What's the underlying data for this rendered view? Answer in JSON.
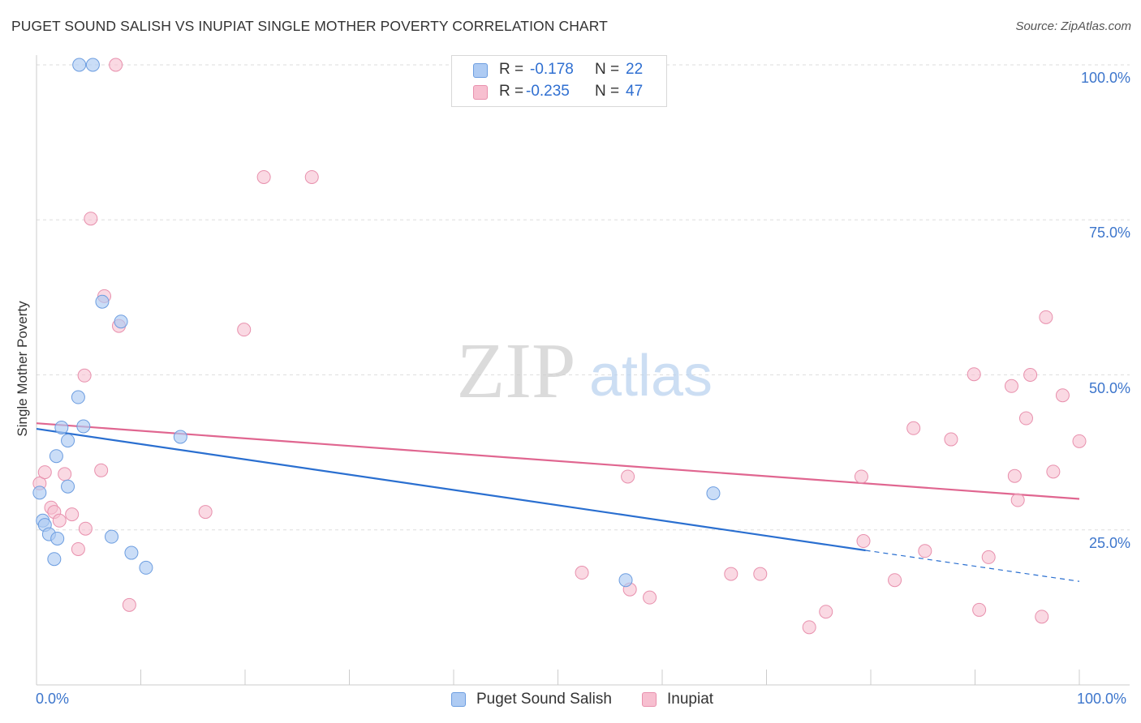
{
  "title": "PUGET SOUND SALISH VS INUPIAT SINGLE MOTHER POVERTY CORRELATION CHART",
  "source": "Source: ZipAtlas.com",
  "watermark": {
    "zip": "ZIP",
    "atlas": "atlas"
  },
  "legend": {
    "rows": [
      {
        "r_label": "R =",
        "r_value": "-0.178",
        "n_label": "N =",
        "n_value": "22"
      },
      {
        "r_label": "R =",
        "r_value": "-0.235",
        "n_label": "N =",
        "n_value": "47"
      }
    ]
  },
  "bottom_legend": {
    "series1": "Puget Sound Salish",
    "series2": "Inupiat"
  },
  "colors": {
    "series1_fill": "#aecbf3",
    "series1_stroke": "#6c9de0",
    "series1_line": "#2a6fd0",
    "series2_fill": "#f7bfd0",
    "series2_stroke": "#e890ad",
    "series2_line": "#e06690",
    "tick_text": "#3d76cc",
    "grid": "#dedede"
  },
  "chart_data": {
    "type": "scatter",
    "title": "PUGET SOUND SALISH VS INUPIAT SINGLE MOTHER POVERTY CORRELATION CHART",
    "xlabel": "",
    "ylabel": "Single Mother Poverty",
    "xlim": [
      0,
      100
    ],
    "ylim": [
      0,
      100
    ],
    "x_tick_labels": [
      "0.0%",
      "100.0%"
    ],
    "y_tick_labels": [
      "25.0%",
      "50.0%",
      "75.0%",
      "100.0%"
    ],
    "y_ticks": [
      25,
      50,
      75,
      100
    ],
    "grid": true,
    "legend_position": "top-center",
    "series": [
      {
        "name": "Puget Sound Salish",
        "r": -0.178,
        "n": 22,
        "points": [
          [
            0.3,
            31.0
          ],
          [
            0.6,
            26.5
          ],
          [
            0.8,
            25.8
          ],
          [
            1.2,
            24.3
          ],
          [
            1.7,
            20.3
          ],
          [
            2.0,
            23.6
          ],
          [
            1.9,
            36.9
          ],
          [
            2.4,
            41.5
          ],
          [
            3.0,
            39.4
          ],
          [
            3.0,
            32.0
          ],
          [
            4.0,
            46.4
          ],
          [
            4.5,
            41.7
          ],
          [
            4.1,
            100.0
          ],
          [
            5.4,
            100.0
          ],
          [
            6.3,
            61.8
          ],
          [
            8.1,
            58.6
          ],
          [
            7.2,
            23.9
          ],
          [
            9.1,
            21.3
          ],
          [
            10.5,
            18.9
          ],
          [
            13.8,
            40.0
          ],
          [
            56.5,
            16.9
          ],
          [
            64.9,
            30.9
          ]
        ],
        "trend": {
          "x0": 0,
          "y0": 41.3,
          "x1": 79.5,
          "y1": 21.7,
          "dash_to_x": 100,
          "dash_to_y": 16.7
        }
      },
      {
        "name": "Inupiat",
        "r": -0.235,
        "n": 47,
        "points": [
          [
            0.3,
            32.5
          ],
          [
            0.8,
            34.3
          ],
          [
            1.4,
            28.6
          ],
          [
            1.7,
            27.9
          ],
          [
            2.2,
            26.5
          ],
          [
            2.7,
            34.0
          ],
          [
            3.4,
            27.5
          ],
          [
            4.0,
            21.9
          ],
          [
            4.6,
            49.9
          ],
          [
            4.7,
            25.2
          ],
          [
            5.2,
            75.2
          ],
          [
            6.2,
            34.6
          ],
          [
            6.5,
            62.7
          ],
          [
            7.6,
            100.0
          ],
          [
            7.9,
            57.9
          ],
          [
            8.9,
            12.9
          ],
          [
            16.2,
            27.9
          ],
          [
            19.9,
            57.3
          ],
          [
            21.8,
            81.9
          ],
          [
            26.4,
            81.9
          ],
          [
            52.3,
            18.1
          ],
          [
            56.7,
            33.6
          ],
          [
            56.9,
            15.4
          ],
          [
            58.8,
            14.1
          ],
          [
            66.6,
            17.9
          ],
          [
            69.4,
            17.9
          ],
          [
            74.1,
            9.3
          ],
          [
            75.7,
            11.8
          ],
          [
            79.1,
            33.6
          ],
          [
            79.3,
            23.2
          ],
          [
            82.3,
            16.9
          ],
          [
            84.1,
            41.4
          ],
          [
            85.2,
            21.6
          ],
          [
            87.7,
            39.6
          ],
          [
            89.9,
            50.1
          ],
          [
            90.4,
            12.1
          ],
          [
            91.3,
            20.6
          ],
          [
            93.5,
            48.2
          ],
          [
            93.8,
            33.7
          ],
          [
            94.1,
            29.8
          ],
          [
            94.9,
            43.0
          ],
          [
            95.3,
            50.0
          ],
          [
            96.4,
            11.0
          ],
          [
            96.8,
            59.3
          ],
          [
            97.5,
            34.4
          ],
          [
            98.4,
            46.7
          ],
          [
            100.0,
            39.3
          ]
        ],
        "trend": {
          "x0": 0,
          "y0": 42.2,
          "x1": 100,
          "y1": 30.0
        }
      }
    ]
  }
}
